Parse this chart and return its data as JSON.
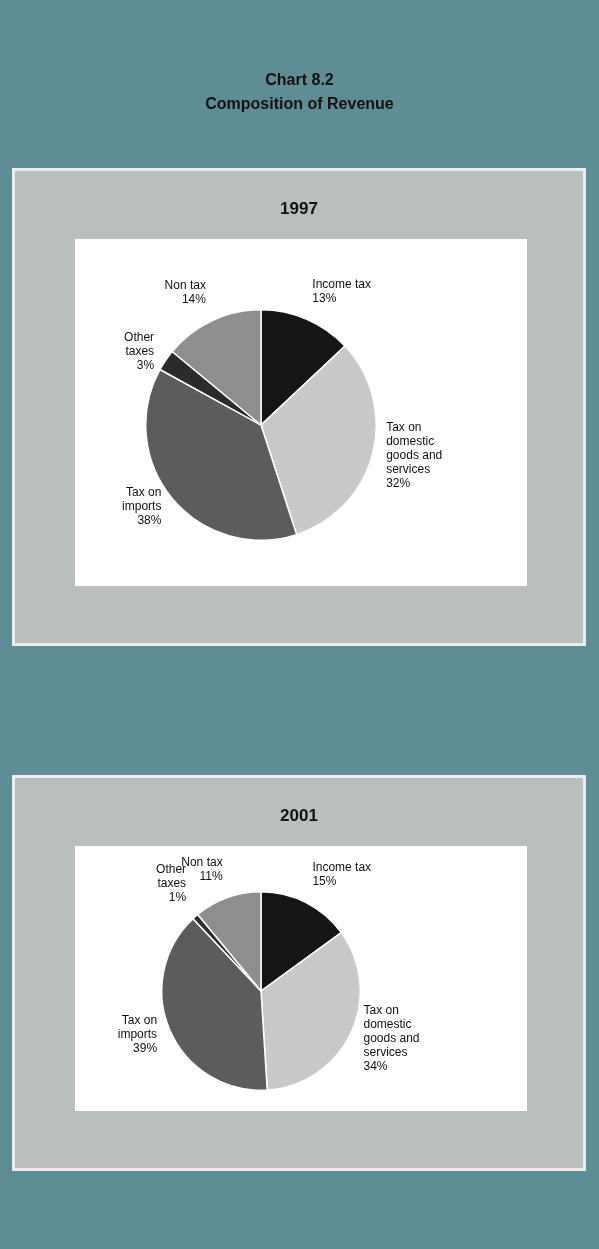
{
  "chart_data": [
    {
      "type": "other",
      "title": "Chart 8.2",
      "subtitle": "Composition of Revenue"
    },
    {
      "type": "pie",
      "title": "1997",
      "categories": [
        "Income tax",
        "Tax on domestic goods and services",
        "Tax on imports",
        "Other taxes",
        "Non tax"
      ],
      "values": [
        13,
        32,
        38,
        3,
        14
      ],
      "value_labels": [
        "13%",
        "32%",
        "38%",
        "3%",
        "14%"
      ],
      "colors": [
        "#151515",
        "#c9c9c9",
        "#5c5c5c",
        "#2b2b2b",
        "#8e8e8e"
      ],
      "legend": false
    },
    {
      "type": "pie",
      "title": "2001",
      "categories": [
        "Income tax",
        "Tax on domestic goods and services",
        "Tax on imports",
        "Other taxes",
        "Non tax"
      ],
      "values": [
        15,
        34,
        39,
        1,
        11
      ],
      "value_labels": [
        "15%",
        "34%",
        "39%",
        "1%",
        "11%"
      ],
      "colors": [
        "#151515",
        "#c9c9c9",
        "#5c5c5c",
        "#2b2b2b",
        "#8e8e8e"
      ],
      "legend": false
    }
  ]
}
